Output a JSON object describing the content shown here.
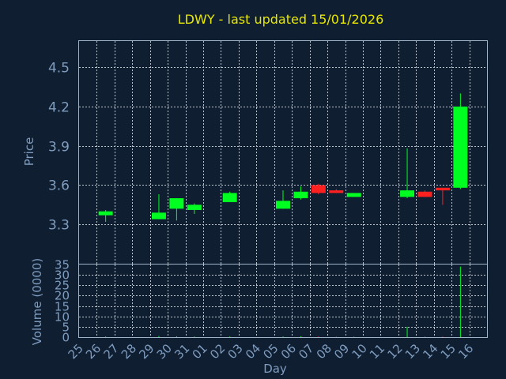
{
  "chart_data": {
    "type": "candlestick",
    "title": "LDWY - last updated 15/01/2026",
    "xlabel": "Day",
    "price_panel": {
      "ylabel": "Price",
      "ylim": [
        3.0,
        4.7
      ],
      "yticks": [
        "3.3",
        "3.6",
        "3.9",
        "4.2",
        "4.5"
      ]
    },
    "volume_panel": {
      "ylabel": "Volume (0000)",
      "ylim": [
        0,
        35
      ],
      "yticks": [
        "0",
        "5",
        "10",
        "15",
        "20",
        "25",
        "30",
        "35"
      ]
    },
    "x_ticks": [
      "25",
      "26",
      "27",
      "28",
      "29",
      "30",
      "31",
      "01",
      "02",
      "03",
      "04",
      "05",
      "06",
      "07",
      "08",
      "09",
      "10",
      "11",
      "12",
      "13",
      "14",
      "15",
      "16"
    ],
    "colors": {
      "up": "#00ff20",
      "down": "#ff2020",
      "title": "#e8e800",
      "axis_text": "#7f9dbf",
      "background": "#0f1e30"
    },
    "candles": [
      {
        "day": "26",
        "open": 3.37,
        "close": 3.4,
        "high": 3.41,
        "low": 3.32,
        "volume": 0.3
      },
      {
        "day": "29",
        "open": 3.34,
        "close": 3.39,
        "high": 3.53,
        "low": 3.34,
        "volume": 0.5
      },
      {
        "day": "30",
        "open": 3.42,
        "close": 3.5,
        "high": 3.5,
        "low": 3.33,
        "volume": 0.4
      },
      {
        "day": "31",
        "open": 3.41,
        "close": 3.45,
        "high": 3.46,
        "low": 3.38,
        "volume": 0.3
      },
      {
        "day": "02",
        "open": 3.47,
        "close": 3.54,
        "high": 3.55,
        "low": 3.47,
        "volume": 0.3
      },
      {
        "day": "05",
        "open": 3.42,
        "close": 3.48,
        "high": 3.56,
        "low": 3.42,
        "volume": 0.3
      },
      {
        "day": "06",
        "open": 3.5,
        "close": 3.55,
        "high": 3.59,
        "low": 3.49,
        "volume": 0.4
      },
      {
        "day": "07",
        "open": 3.6,
        "close": 3.54,
        "high": 3.61,
        "low": 3.53,
        "volume": 0.3
      },
      {
        "day": "08",
        "open": 3.56,
        "close": 3.54,
        "high": 3.57,
        "low": 3.54,
        "volume": 0.3
      },
      {
        "day": "09",
        "open": 3.51,
        "close": 3.54,
        "high": 3.54,
        "low": 3.51,
        "volume": 0.2
      },
      {
        "day": "12",
        "open": 3.51,
        "close": 3.56,
        "high": 3.88,
        "low": 3.5,
        "volume": 5.0
      },
      {
        "day": "13",
        "open": 3.55,
        "close": 3.51,
        "high": 3.56,
        "low": 3.51,
        "volume": 0.3
      },
      {
        "day": "14",
        "open": 3.58,
        "close": 3.56,
        "high": 3.58,
        "low": 3.45,
        "volume": 0.3
      },
      {
        "day": "15",
        "open": 3.58,
        "close": 4.2,
        "high": 4.3,
        "low": 3.57,
        "volume": 34.0
      }
    ]
  }
}
